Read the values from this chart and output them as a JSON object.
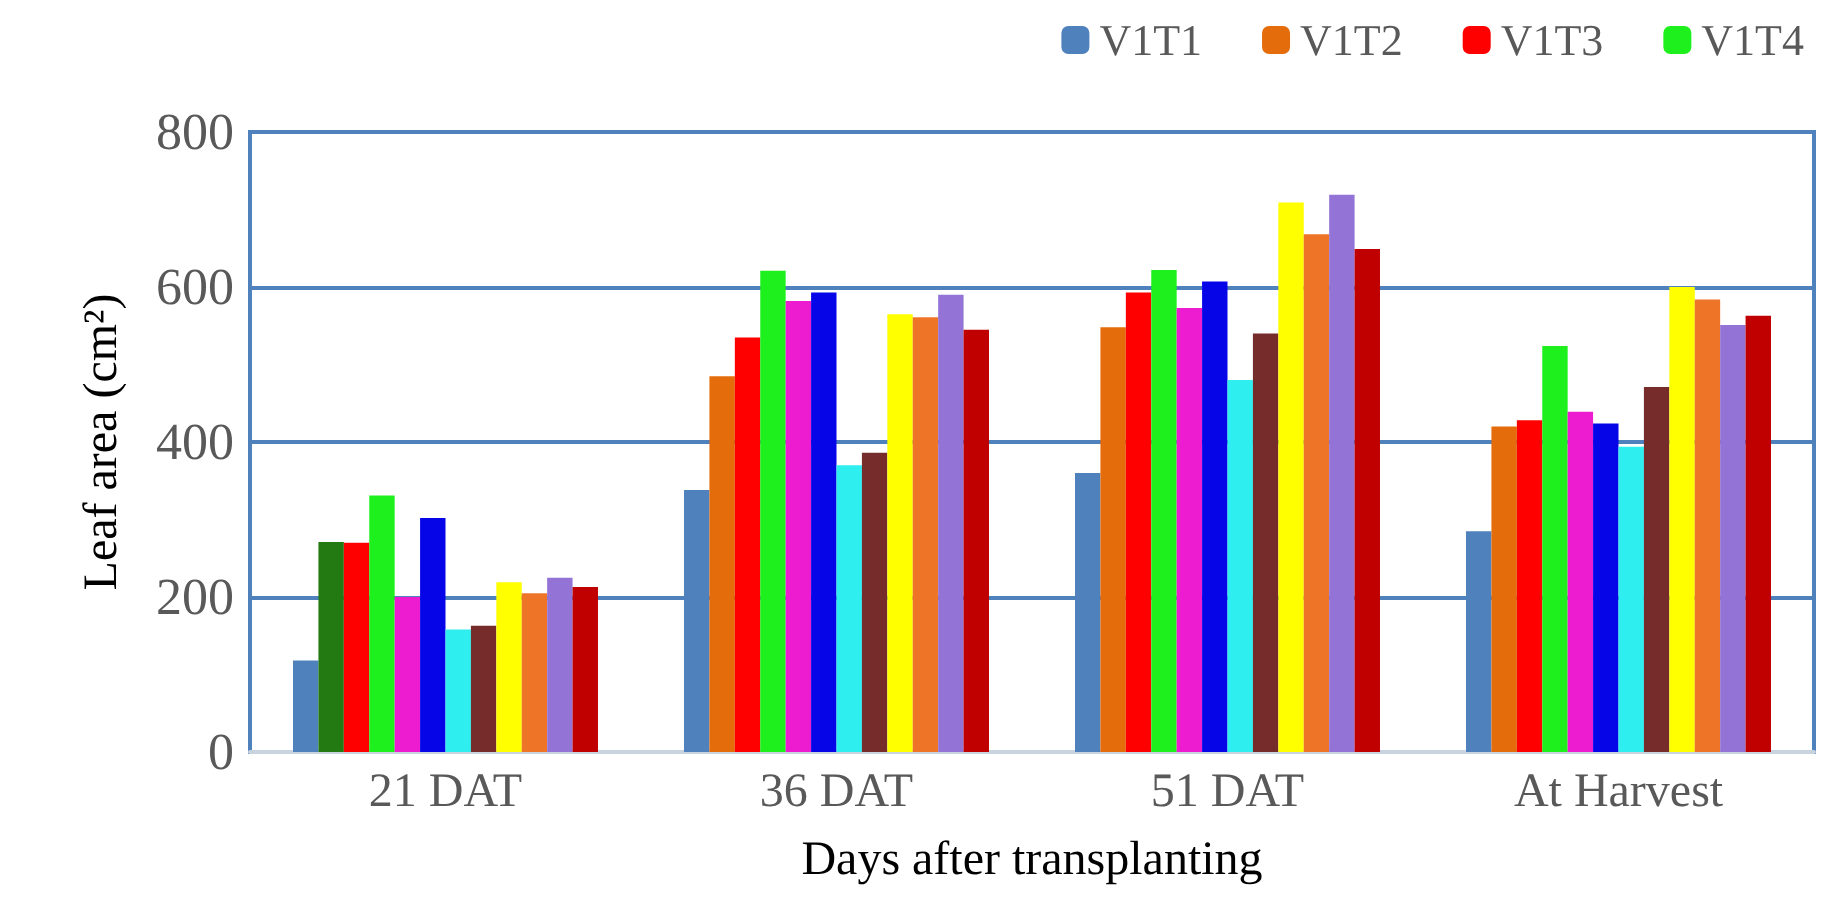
{
  "chart_data": {
    "type": "bar",
    "xlabel": "Days after transplanting",
    "ylabel": "Leaf area (cm²)",
    "categories": [
      "21 DAT",
      "36 DAT",
      "51 DAT",
      "At Harvest"
    ],
    "series": [
      {
        "name": "V1T1",
        "color": "#4f81bd",
        "values": [
          118,
          338,
          360,
          285
        ]
      },
      {
        "name": "V1T2",
        "color": "#e46c0a",
        "colors": [
          "#247a12",
          "#e46c0a",
          "#e46c0a",
          "#e46c0a"
        ],
        "values": [
          271,
          485,
          548,
          420
        ]
      },
      {
        "name": "V1T3",
        "color": "#ff0000",
        "values": [
          270,
          535,
          593,
          428
        ]
      },
      {
        "name": "V1T4",
        "color": "#1ef01e",
        "values": [
          331,
          621,
          622,
          524
        ]
      },
      {
        "color": "#ee1cd0",
        "values": [
          200,
          582,
          573,
          439
        ]
      },
      {
        "color": "#0505e8",
        "values": [
          302,
          593,
          607,
          424
        ]
      },
      {
        "color": "#2eeef0",
        "values": [
          158,
          370,
          480,
          394
        ]
      },
      {
        "color": "#772c2c",
        "values": [
          163,
          386,
          540,
          471
        ]
      },
      {
        "color": "#ffff00",
        "values": [
          219,
          565,
          709,
          600
        ]
      },
      {
        "color": "#ee7428",
        "values": [
          205,
          561,
          668,
          584
        ]
      },
      {
        "color": "#9473d6",
        "values": [
          225,
          590,
          719,
          551
        ]
      },
      {
        "color": "#c00000",
        "values": [
          213,
          545,
          649,
          563
        ]
      }
    ],
    "ylim": [
      0,
      800
    ],
    "yticks": [
      0,
      200,
      400,
      600,
      800
    ],
    "grid": "y",
    "legend": "top right"
  }
}
